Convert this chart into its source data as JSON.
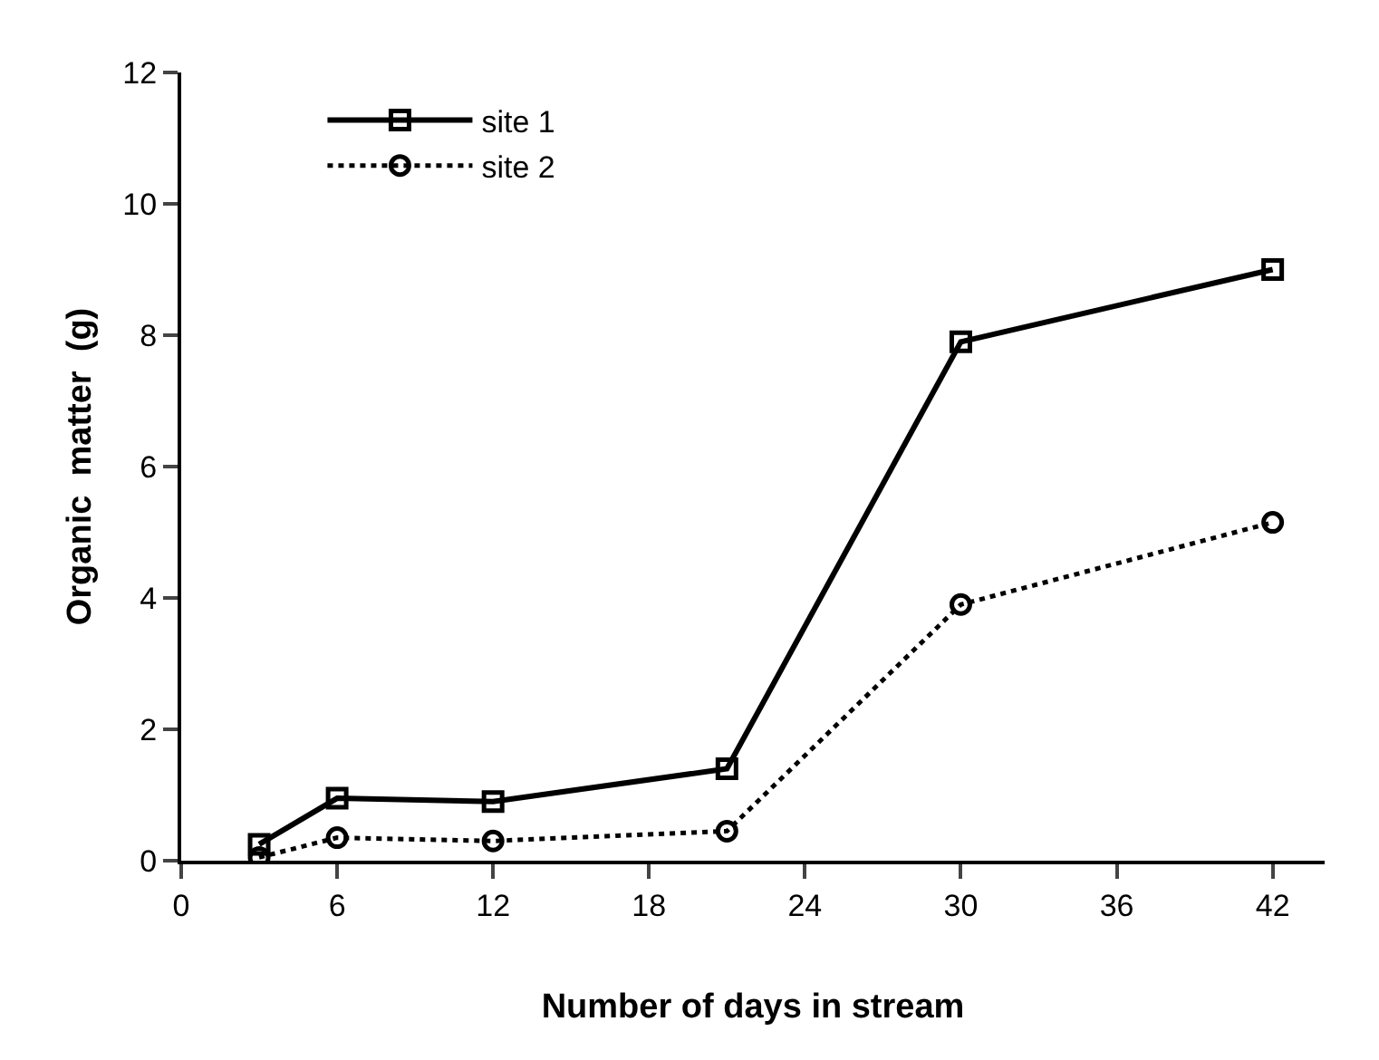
{
  "chart_data": {
    "type": "line",
    "xlabel": "Number of days in stream",
    "ylabel": "Organic  matter  (g)",
    "x": [
      3,
      6,
      12,
      21,
      30,
      42
    ],
    "series": [
      {
        "name": "site 1",
        "color": "#000000",
        "values": [
          0.25,
          0.95,
          0.9,
          1.4,
          7.9,
          9.0
        ],
        "marker": "square",
        "line_style": "solid"
      },
      {
        "name": "site 2",
        "color": "#000000",
        "values": [
          0.05,
          0.35,
          0.3,
          0.45,
          3.9,
          5.15
        ],
        "marker": "circle",
        "line_style": "dotted"
      }
    ],
    "xlim": [
      0,
      44
    ],
    "xticks": [
      0,
      6,
      12,
      18,
      24,
      30,
      36,
      42
    ],
    "ylim": [
      0,
      12
    ],
    "yticks": [
      0,
      2,
      4,
      6,
      8,
      10,
      12
    ],
    "legend": "top left"
  }
}
